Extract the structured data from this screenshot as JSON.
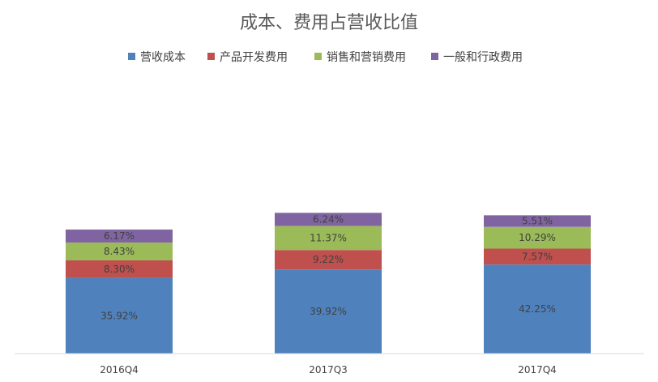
{
  "chart_data": {
    "type": "bar",
    "stacked": true,
    "title": "成本、费用占营收比值",
    "categories": [
      "2016Q4",
      "2017Q3",
      "2017Q4"
    ],
    "series": [
      {
        "name": "营收成本",
        "color": "#4F81BD",
        "values": [
          35.92,
          39.92,
          42.25
        ],
        "labels": [
          "35.92%",
          "39.92%",
          "42.25%"
        ]
      },
      {
        "name": "产品开发费用",
        "color": "#C0504D",
        "values": [
          8.3,
          9.22,
          7.57
        ],
        "labels": [
          "8.30%",
          "9.22%",
          "7.57%"
        ]
      },
      {
        "name": "销售和营销费用",
        "color": "#9BBB59",
        "values": [
          8.43,
          11.37,
          10.29
        ],
        "labels": [
          "8.43%",
          "11.37%",
          "10.29%"
        ]
      },
      {
        "name": "一般和行政费用",
        "color": "#8064A2",
        "values": [
          6.17,
          6.24,
          5.51
        ],
        "labels": [
          "6.17%",
          "6.24%",
          "5.51%"
        ]
      }
    ],
    "ylim": [
      0,
      70
    ],
    "grid": false,
    "legend": "top"
  }
}
